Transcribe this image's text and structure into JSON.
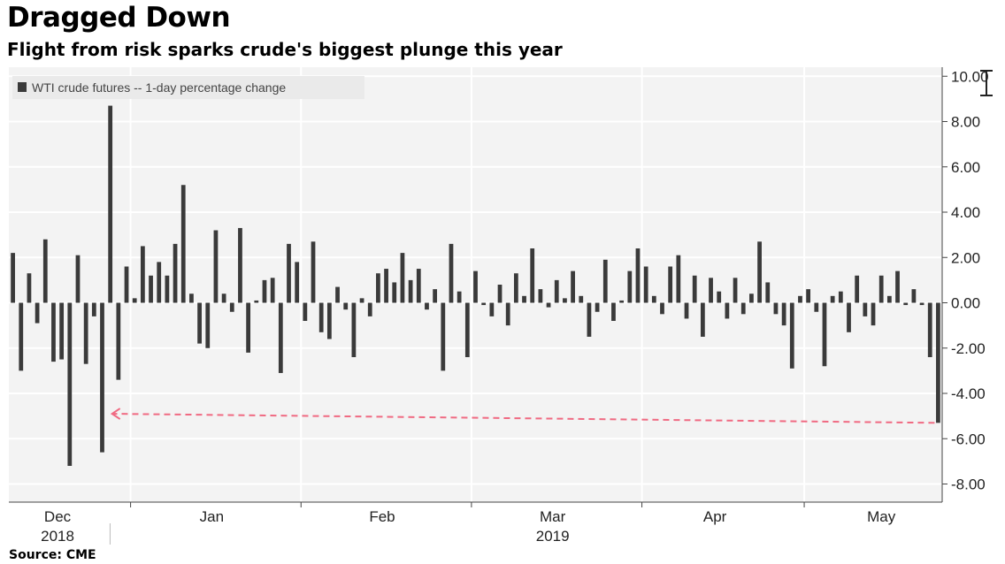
{
  "title": "Dragged Down",
  "subtitle": "Flight from risk sparks crude's biggest plunge this year",
  "source": "Source: CME",
  "colors": {
    "bar": "#3a3a3a",
    "plot_bg": "#f3f3f3",
    "grid": "#ffffff",
    "annotation": "#f06a82"
  },
  "chart_data": {
    "type": "bar",
    "legend": [
      "WTI crude futures -- 1-day percentage change"
    ],
    "legend_position": "top-left",
    "series": [
      {
        "name": "WTI crude futures -- 1-day percentage change",
        "values": [
          2.2,
          -3.0,
          1.3,
          -0.9,
          2.8,
          -2.6,
          -2.5,
          -7.2,
          2.1,
          -2.7,
          -0.6,
          -6.6,
          8.7,
          -3.4,
          1.6,
          0.2,
          2.5,
          1.2,
          1.8,
          1.2,
          2.6,
          5.2,
          0.4,
          -1.8,
          -2.0,
          3.2,
          0.4,
          -0.4,
          3.3,
          -2.2,
          0.1,
          1.0,
          1.1,
          -3.1,
          2.6,
          1.8,
          -0.8,
          2.7,
          -1.3,
          -1.6,
          0.7,
          -0.3,
          -2.4,
          0.2,
          -0.6,
          1.3,
          1.5,
          0.9,
          2.2,
          1.0,
          1.5,
          -0.3,
          0.6,
          -3.0,
          2.6,
          0.5,
          -2.4,
          1.4,
          -0.1,
          -0.6,
          0.8,
          -1.0,
          1.3,
          0.3,
          2.4,
          0.6,
          -0.2,
          1.0,
          0.2,
          1.4,
          0.3,
          -1.5,
          -0.4,
          1.9,
          -0.8,
          0.1,
          1.4,
          2.4,
          1.6,
          0.3,
          -0.5,
          1.6,
          2.1,
          -0.7,
          1.2,
          -1.5,
          1.1,
          0.5,
          -0.7,
          1.1,
          -0.5,
          0.4,
          2.7,
          0.9,
          -0.5,
          -1.0,
          -2.9,
          0.3,
          0.6,
          -0.4,
          -2.8,
          0.3,
          0.5,
          -1.3,
          1.2,
          -0.6,
          -1.0,
          1.2,
          0.3,
          1.4,
          -0.1,
          0.6,
          -0.1,
          -2.4,
          -5.3
        ]
      }
    ],
    "y_ticks": [
      "10.00",
      "8.00",
      "6.00",
      "4.00",
      "2.00",
      "0.00",
      "-2.00",
      "-4.00",
      "-6.00",
      "-8.00"
    ],
    "ylim": [
      -8.8,
      10.4
    ],
    "y_axis_position": "right",
    "x_labels": [
      {
        "label": "Dec",
        "index": 5.5
      },
      {
        "label": "Jan",
        "index": 24.5
      },
      {
        "label": "Feb",
        "index": 45.5
      },
      {
        "label": "Mar",
        "index": 66.5
      },
      {
        "label": "Apr",
        "index": 86.5
      },
      {
        "label": "May",
        "index": 107
      }
    ],
    "year_labels": [
      {
        "label": "2018",
        "index": 5.5
      },
      {
        "label": "2019",
        "index": 66.5
      }
    ],
    "month_boundaries": [
      14.5,
      35.5,
      56.5,
      77.5,
      97.5
    ],
    "annotation": {
      "type": "dashed-arrow",
      "y_value_start": -4.9,
      "y_value_end": -5.3,
      "from_index": 12,
      "to_index": 114
    },
    "grid": true
  }
}
